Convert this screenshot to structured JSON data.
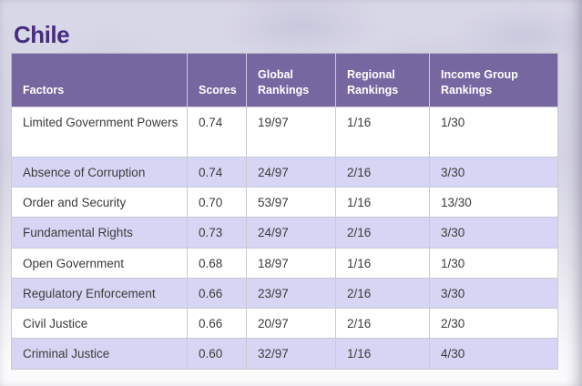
{
  "page": {
    "title": "Chile"
  },
  "colors": {
    "title_text": "#472d7f",
    "header_bg": "#7667a1",
    "header_text": "#ffffff",
    "row_bg": "#ffffff",
    "row_alt_bg": "#d6d6f4",
    "body_text": "#3b3b3b"
  },
  "chart_data": {
    "type": "table",
    "title": "Chile",
    "columns": [
      {
        "key": "factor",
        "label": "Factors"
      },
      {
        "key": "score",
        "label": "Scores"
      },
      {
        "key": "global",
        "label": "Global Rankings"
      },
      {
        "key": "regional",
        "label": "Regional Rankings"
      },
      {
        "key": "income",
        "label": "Income Group Rankings"
      }
    ],
    "rows": [
      {
        "factor": "Limited Government Powers",
        "score": "0.74",
        "global": "19/97",
        "regional": "1/16",
        "income": "1/30"
      },
      {
        "factor": "Absence of Corruption",
        "score": "0.74",
        "global": "24/97",
        "regional": "2/16",
        "income": "3/30"
      },
      {
        "factor": "Order and Security",
        "score": "0.70",
        "global": "53/97",
        "regional": "1/16",
        "income": "13/30"
      },
      {
        "factor": "Fundamental Rights",
        "score": "0.73",
        "global": "24/97",
        "regional": "2/16",
        "income": "3/30"
      },
      {
        "factor": "Open Government",
        "score": "0.68",
        "global": "18/97",
        "regional": "1/16",
        "income": "1/30"
      },
      {
        "factor": "Regulatory Enforcement",
        "score": "0.66",
        "global": "23/97",
        "regional": "2/16",
        "income": "3/30"
      },
      {
        "factor": "Civil Justice",
        "score": "0.66",
        "global": "20/97",
        "regional": "2/16",
        "income": "2/30"
      },
      {
        "factor": "Criminal Justice",
        "score": "0.60",
        "global": "32/97",
        "regional": "1/16",
        "income": "4/30"
      }
    ]
  }
}
